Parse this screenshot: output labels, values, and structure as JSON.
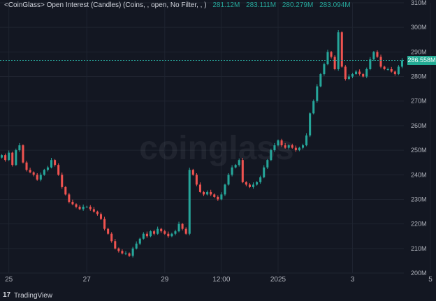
{
  "legend": {
    "name": "<CoinGlass> Open Interest (Candles) (Coins, , open, No Filter, , )",
    "open": "281.12M",
    "high": "283.111M",
    "low": "280.279M",
    "close": "283.094M"
  },
  "price_badge": "286.558M",
  "watermark": "coinglass",
  "footer": {
    "logo_glyph": "17",
    "brand": "TradingView"
  },
  "colors": {
    "up": "#26a69a",
    "down": "#ef5350",
    "background": "#131722",
    "grid": "#1f2430",
    "badge": "#22ab94"
  },
  "chart_data": {
    "type": "candlestick",
    "title": "<CoinGlass> Open Interest (Candles) (Coins, , open, No Filter, , )",
    "ylim": [
      200,
      310
    ],
    "y_ticks": [
      "310M",
      "300M",
      "290M",
      "280M",
      "270M",
      "260M",
      "250M",
      "240M",
      "230M",
      "220M",
      "210M",
      "200M"
    ],
    "x_tick_labels": [
      "25",
      "27",
      "29",
      "12:00",
      "2025",
      "3",
      "5"
    ],
    "x_tick_positions": [
      2,
      24,
      46,
      62,
      78,
      99,
      121
    ],
    "grid": true,
    "last_value": 286.558,
    "close_series": [
      248,
      246,
      249,
      244,
      250,
      252,
      245,
      242,
      241,
      240,
      238,
      240,
      242,
      243,
      246,
      244,
      240,
      235,
      232,
      229,
      228,
      227,
      226,
      227,
      227,
      226,
      225,
      224,
      222,
      218,
      216,
      213,
      210,
      209,
      208,
      208,
      207,
      210,
      212,
      214,
      216,
      215,
      217,
      216,
      218,
      217,
      216,
      215,
      216,
      217,
      220,
      218,
      216,
      242,
      240,
      236,
      233,
      232,
      233,
      232,
      231,
      230,
      232,
      236,
      240,
      243,
      244,
      246,
      237,
      236,
      235,
      236,
      237,
      239,
      243,
      246,
      250,
      252,
      254,
      252,
      251,
      252,
      251,
      250,
      251,
      252,
      256,
      265,
      270,
      276,
      281,
      285,
      290,
      288,
      283,
      298,
      284,
      279,
      280,
      281,
      282,
      281,
      280,
      283,
      287,
      290,
      288,
      284,
      283,
      283,
      282,
      281,
      284,
      286.558
    ]
  }
}
